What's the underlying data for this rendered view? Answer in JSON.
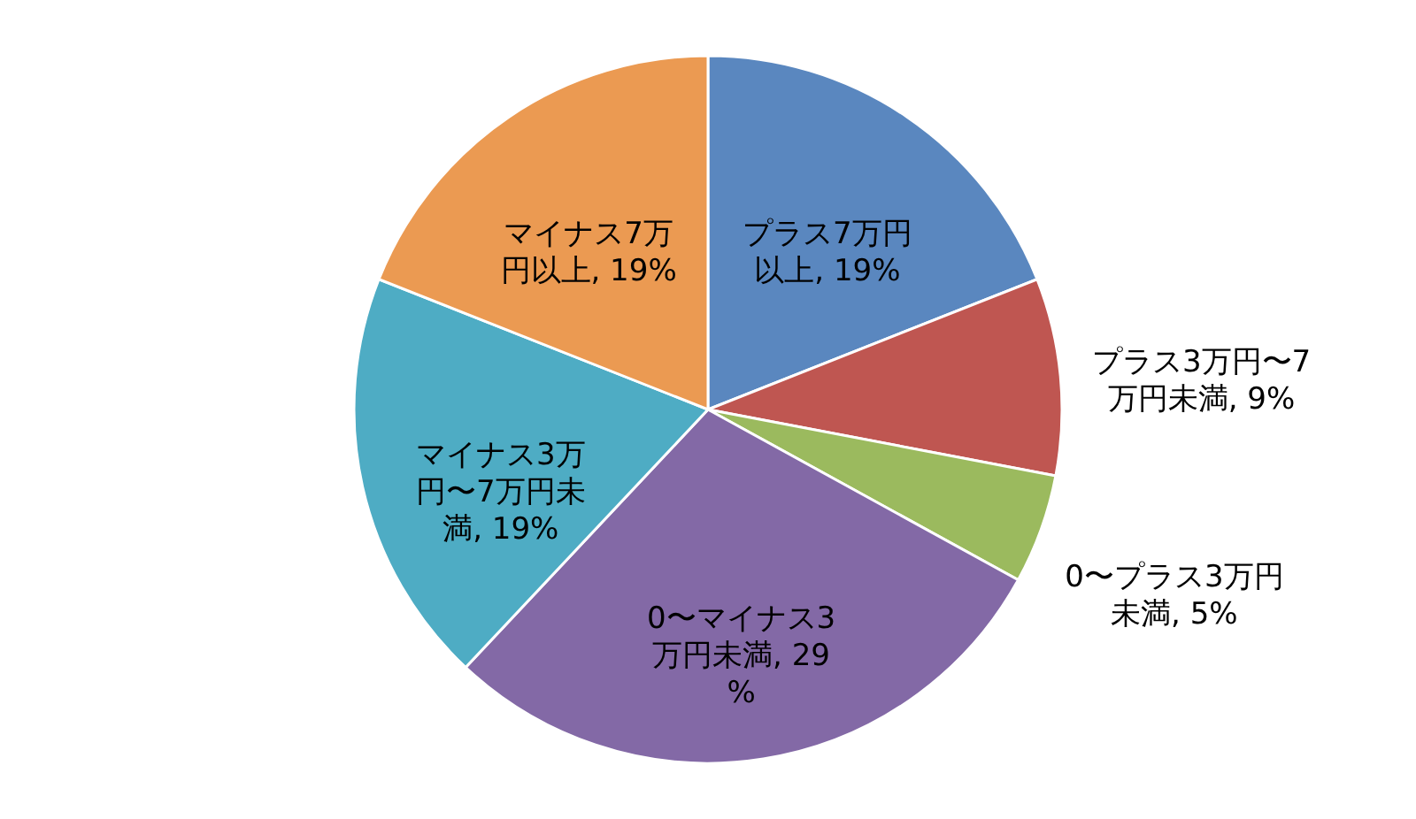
{
  "chart_data": {
    "type": "pie",
    "categories": [
      "プラス7万円以上",
      "プラス3万円〜7万円未満",
      "0〜プラス3万円未満",
      "0〜マイナス3万円未満",
      "マイナス3万円〜7万円未満",
      "マイナス7万円以上"
    ],
    "values": [
      19,
      9,
      5,
      29,
      19,
      19
    ],
    "value_labels": [
      "19%",
      "9%",
      "5%",
      "29%",
      "19%",
      "19%"
    ],
    "colors": [
      "#5a87bf",
      "#bf5651",
      "#9bba5e",
      "#8369a6",
      "#4eacc4",
      "#eb9a52"
    ]
  }
}
